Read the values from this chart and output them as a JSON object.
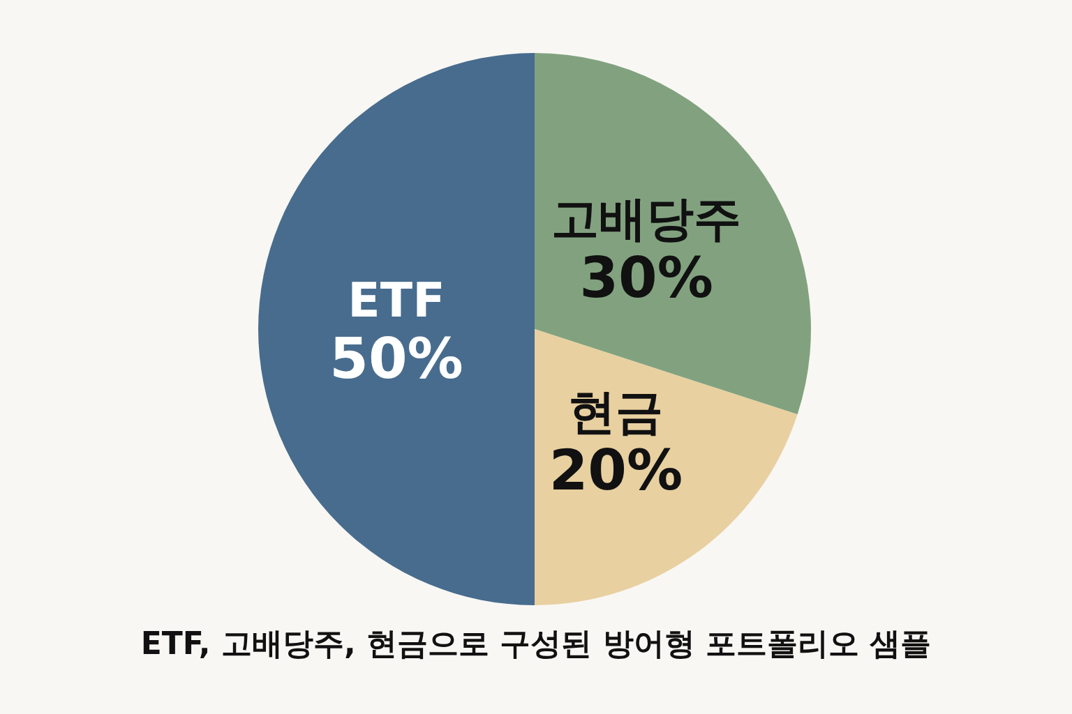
{
  "chart_data": {
    "type": "pie",
    "title": "ETF, 고배당주, 현금으로 구성된 방어형 포트폴리오 샘플",
    "categories": [
      "고배당주",
      "현금",
      "ETF"
    ],
    "values": [
      30,
      20,
      50
    ],
    "value_labels": [
      "30%",
      "20%",
      "50%"
    ],
    "colors": [
      "#82a27f",
      "#e8d0a0",
      "#476c8e"
    ]
  }
}
